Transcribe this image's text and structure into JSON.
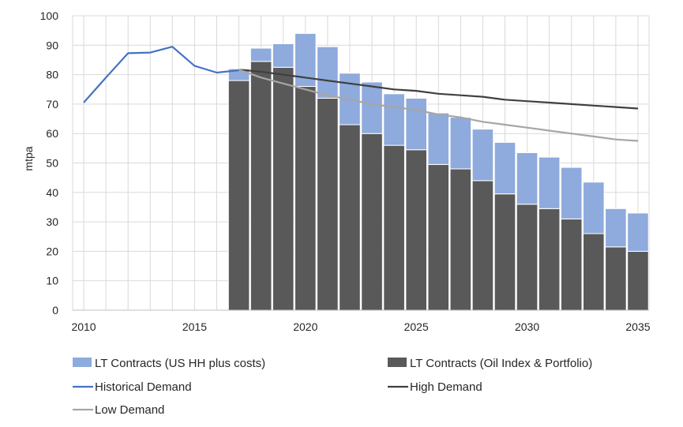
{
  "chart_data": {
    "type": "bar",
    "title": "",
    "xlabel": "",
    "ylabel": "mtpa",
    "ylim": [
      0,
      100
    ],
    "xlim": [
      2009.5,
      2035.5
    ],
    "yticks": [
      "0",
      "10",
      "20",
      "30",
      "40",
      "50",
      "60",
      "70",
      "80",
      "90",
      "100"
    ],
    "xticks": [
      "2010",
      "2015",
      "2020",
      "2025",
      "2030",
      "2035"
    ],
    "grid": "vertical and horizontal",
    "legend_position": "bottom",
    "bar_series": [
      {
        "name": "LT Contracts (Oil Index & Portfolio)",
        "color": "#595959",
        "x": [
          2017,
          2018,
          2019,
          2020,
          2021,
          2022,
          2023,
          2024,
          2025,
          2026,
          2027,
          2028,
          2029,
          2030,
          2031,
          2032,
          2033,
          2034,
          2035
        ],
        "values": [
          78,
          84.5,
          82.5,
          76,
          72,
          63,
          60,
          56,
          54.5,
          49.5,
          48,
          44,
          39.5,
          36,
          34.5,
          31,
          26,
          21.5,
          20
        ]
      },
      {
        "name": "LT Contracts (US HH plus costs)",
        "color": "#8faadc",
        "x": [
          2017,
          2018,
          2019,
          2020,
          2021,
          2022,
          2023,
          2024,
          2025,
          2026,
          2027,
          2028,
          2029,
          2030,
          2031,
          2032,
          2033,
          2034,
          2035
        ],
        "values": [
          4,
          4.5,
          8,
          18,
          17.5,
          17.5,
          17.5,
          17.5,
          17.5,
          17.5,
          17.5,
          17.5,
          17.5,
          17.5,
          17.5,
          17.5,
          17.5,
          13,
          13
        ]
      }
    ],
    "line_series": [
      {
        "name": "Historical Demand",
        "color": "#4472c4",
        "x": [
          2010,
          2011,
          2012,
          2013,
          2014,
          2015,
          2016,
          2017
        ],
        "values": [
          70.5,
          79,
          87.3,
          87.5,
          89.5,
          83,
          80.7,
          81.5
        ]
      },
      {
        "name": "High Demand",
        "color": "#404040",
        "x": [
          2017,
          2018,
          2019,
          2020,
          2021,
          2022,
          2023,
          2024,
          2025,
          2026,
          2027,
          2028,
          2029,
          2030,
          2031,
          2032,
          2033,
          2034,
          2035
        ],
        "values": [
          81.7,
          81,
          80,
          79,
          78,
          77,
          76,
          75,
          74.5,
          73.5,
          73,
          72.5,
          71.5,
          71,
          70.5,
          70,
          69.5,
          69,
          68.5
        ]
      },
      {
        "name": "Low Demand",
        "color": "#a6a6a6",
        "x": [
          2017,
          2018,
          2019,
          2020,
          2021,
          2022,
          2023,
          2024,
          2025,
          2026,
          2027,
          2028,
          2029,
          2030,
          2031,
          2032,
          2033,
          2034,
          2035
        ],
        "values": [
          81.7,
          79,
          77,
          75,
          73,
          71.5,
          70,
          69,
          68,
          66.5,
          65.5,
          64,
          63,
          62,
          61,
          60,
          59,
          58,
          57.5
        ]
      }
    ],
    "legend": [
      {
        "label": "LT Contracts (US HH plus costs)",
        "kind": "box",
        "color": "#8faadc"
      },
      {
        "label": "LT Contracts (Oil Index & Portfolio)",
        "kind": "box",
        "color": "#595959"
      },
      {
        "label": "Historical Demand",
        "kind": "line",
        "color": "#4472c4"
      },
      {
        "label": "High Demand",
        "kind": "line",
        "color": "#404040"
      },
      {
        "label": "Low Demand",
        "kind": "line",
        "color": "#a6a6a6"
      }
    ]
  }
}
